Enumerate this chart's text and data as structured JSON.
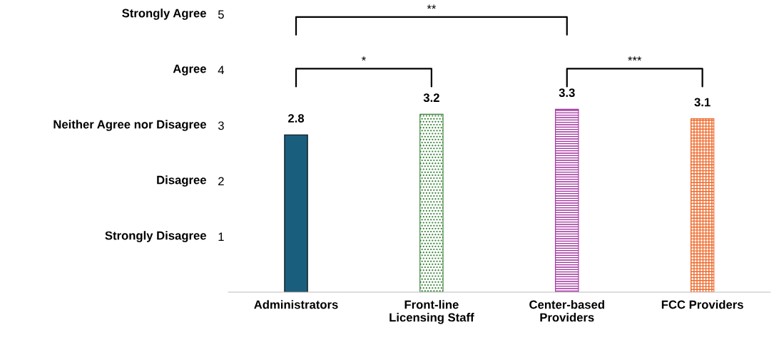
{
  "chart_data": {
    "type": "bar",
    "categories": [
      "Administrators",
      "Front-line\nLicensing Staff",
      "Center-based\nProviders",
      "FCC Providers"
    ],
    "values": [
      2.83,
      3.2,
      3.29,
      3.12
    ],
    "value_labels": [
      "2.8",
      "3.2",
      "3.3",
      "3.1"
    ],
    "colors": [
      "#1a5e7e",
      "#2e7d2e",
      "#a0309e",
      "#ee6a2c"
    ],
    "ylim": [
      0,
      5
    ],
    "yticks": [
      1,
      2,
      3,
      4,
      5
    ],
    "grid": false,
    "annotations": [
      "Strongly Disagree",
      "Disagree",
      "Neither Agree nor Disagree",
      "Agree",
      "Strongly Agree",
      "*",
      "**",
      "***"
    ]
  }
}
